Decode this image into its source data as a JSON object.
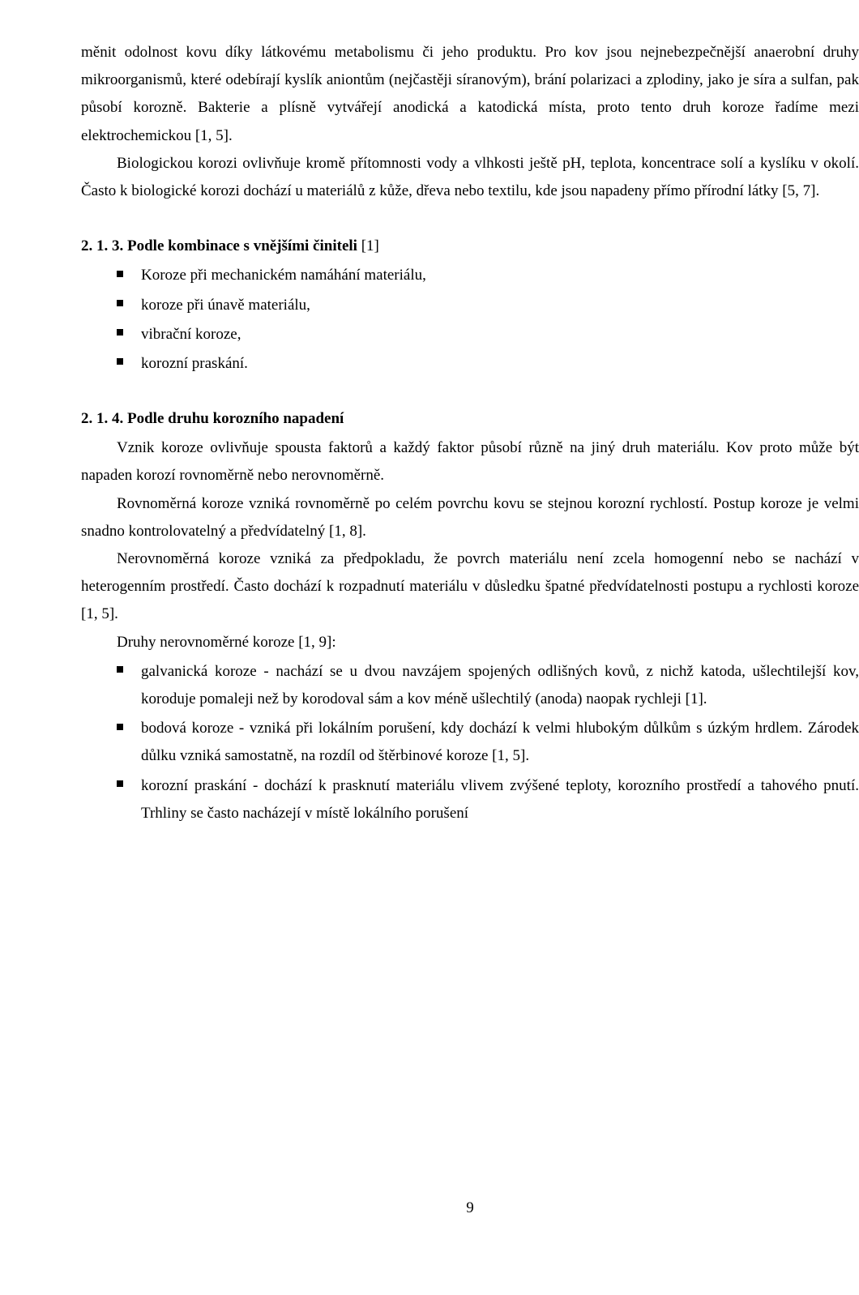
{
  "paragraphs": {
    "p1": "měnit odolnost kovu díky látkovému metabolismu či jeho produktu. Pro kov jsou nejnebezpečnější anaerobní druhy mikroorganismů, které odebírají kyslík aniontům (nejčastěji síranovým), brání polarizaci a zplodiny, jako je síra a sulfan, pak působí korozně. Bakterie a plísně vytvářejí anodická a katodická místa, proto tento druh koroze řadíme mezi elektrochemickou [1, 5].",
    "p2": "Biologickou korozi ovlivňuje kromě přítomnosti vody a vlhkosti ještě pH, teplota, koncentrace solí a kyslíku v okolí. Často k biologické korozi dochází u materiálů z kůže, dřeva nebo textilu, kde jsou napadeny přímo přírodní látky [5, 7].",
    "p3": "Vznik koroze ovlivňuje spousta faktorů a každý faktor působí různě na jiný druh materiálu. Kov proto může být napaden korozí rovnoměrně nebo nerovnoměrně.",
    "p4": "Rovnoměrná koroze vzniká rovnoměrně po celém povrchu kovu se stejnou korozní rychlostí. Postup koroze je velmi snadno kontrolovatelný a předvídatelný [1, 8].",
    "p5": "Nerovnoměrná koroze vzniká za předpokladu, že povrch materiálu není zcela homogenní nebo se nachází v heterogenním prostředí. Často dochází k rozpadnutí materiálu v důsledku špatné předvídatelnosti postupu a rychlosti koroze [1, 5].",
    "p6": "Druhy nerovnoměrné koroze [1, 9]:"
  },
  "headings": {
    "h213": "2. 1. 3. Podle kombinace s vnějšími činiteli",
    "h213_ref": " [1]",
    "h214": "2. 1. 4. Podle druhu korozního napadení"
  },
  "lists": {
    "l1": [
      "Koroze při mechanickém namáhání materiálu,",
      "koroze při únavě materiálu,",
      "vibrační koroze,",
      "korozní praskání."
    ],
    "l2": [
      "galvanická koroze - nachází se u dvou navzájem spojených odlišných kovů, z nichž katoda, ušlechtilejší kov, koroduje pomaleji než by korodoval sám a kov méně ušlechtilý (anoda) naopak rychleji [1].",
      "bodová koroze - vzniká při lokálním porušení, kdy dochází k velmi hlubokým důlkům s úzkým hrdlem. Zárodek důlku vzniká samostatně, na rozdíl od štěrbinové koroze [1, 5].",
      "korozní praskání - dochází k prasknutí materiálu vlivem zvýšené teploty, korozního prostředí a tahového pnutí. Trhliny se často nacházejí v místě lokálního porušení"
    ]
  },
  "page_number": "9"
}
